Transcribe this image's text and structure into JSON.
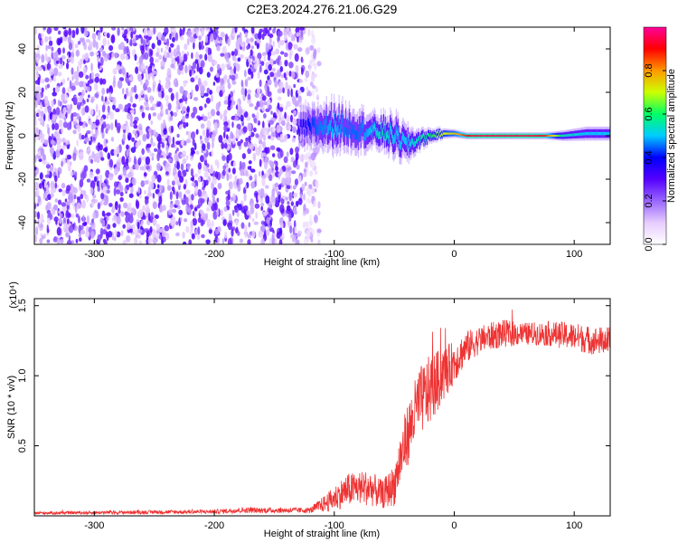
{
  "title": "C2E3.2024.276.21.06.G29",
  "chart_data": [
    {
      "type": "heatmap",
      "xlabel": "Height of straight line (km)",
      "ylabel": "Frequency (Hz)",
      "xlim": [
        -350,
        130
      ],
      "ylim": [
        -50,
        50
      ],
      "x_ticks": [
        -300,
        -200,
        -100,
        0,
        100
      ],
      "x_tick_labels": [
        "-300",
        "-200",
        "-100",
        "0",
        "100"
      ],
      "y_ticks": [
        -40,
        -20,
        0,
        20,
        40
      ],
      "y_tick_labels": [
        "-40",
        "-20",
        "0",
        "20",
        "40"
      ],
      "colorbar": {
        "label": "Normalized spectral amplitude",
        "range": [
          0,
          1
        ],
        "ticks": [
          0.0,
          0.2,
          0.4,
          0.6,
          0.8
        ],
        "tick_labels": [
          "0.0",
          "0.2",
          "0.4",
          "0.6",
          "0.8"
        ],
        "colors": [
          "#ffffff",
          "#e6ccff",
          "#9966ff",
          "#5500ff",
          "#0000ff",
          "#00ccff",
          "#00ff66",
          "#ccff00",
          "#ff9900",
          "#ff0000",
          "#ff0099"
        ]
      },
      "noise_region_x": [
        -350,
        -120
      ],
      "signal_track": {
        "x": [
          -130,
          -115,
          -100,
          -90,
          -80,
          -70,
          -60,
          -50,
          -40,
          -30,
          -20,
          -10,
          0,
          10,
          20,
          40,
          60,
          75,
          90,
          110,
          130
        ],
        "center_freq": [
          3,
          4,
          5,
          4,
          3,
          2,
          2,
          0,
          -4,
          -2,
          0,
          1,
          1,
          0,
          0,
          0,
          0,
          0,
          0,
          1,
          1
        ],
        "half_width": [
          5,
          6,
          7,
          6,
          6,
          5,
          5,
          6,
          5,
          3,
          2,
          1.5,
          1.2,
          1,
          1,
          1,
          1,
          1,
          1.5,
          2,
          2
        ],
        "amplitude": [
          0.35,
          0.45,
          0.5,
          0.45,
          0.45,
          0.5,
          0.55,
          0.5,
          0.5,
          0.55,
          0.6,
          0.7,
          0.75,
          0.9,
          0.95,
          0.95,
          0.95,
          0.9,
          0.55,
          0.5,
          0.5
        ]
      }
    },
    {
      "type": "line",
      "xlabel": "Height of straight line (km)",
      "ylabel": "SNR (10 * v/v)",
      "scale_label": "(x10⁴)",
      "xlim": [
        -350,
        130
      ],
      "ylim": [
        0,
        1.55
      ],
      "x_ticks": [
        -300,
        -200,
        -100,
        0,
        100
      ],
      "x_tick_labels": [
        "-300",
        "-200",
        "-100",
        "0",
        "100"
      ],
      "y_ticks": [
        0.5,
        1.0,
        1.5
      ],
      "y_tick_labels": [
        "0.5",
        "1.0",
        "1.5"
      ],
      "color": "#ee3333",
      "envelope": {
        "x": [
          -350,
          -200,
          -180,
          -120,
          -105,
          -90,
          -80,
          -70,
          -60,
          -50,
          -45,
          -40,
          -30,
          -20,
          -10,
          0,
          10,
          20,
          30,
          40,
          60,
          80,
          100,
          115,
          130
        ],
        "mean": [
          0.02,
          0.03,
          0.04,
          0.04,
          0.1,
          0.18,
          0.2,
          0.2,
          0.15,
          0.22,
          0.4,
          0.55,
          0.8,
          0.9,
          1.0,
          1.1,
          1.2,
          1.25,
          1.28,
          1.3,
          1.3,
          1.3,
          1.28,
          1.25,
          1.25
        ],
        "spread": [
          0.01,
          0.015,
          0.02,
          0.02,
          0.07,
          0.12,
          0.12,
          0.13,
          0.1,
          0.15,
          0.2,
          0.22,
          0.25,
          0.25,
          0.2,
          0.15,
          0.12,
          0.1,
          0.1,
          0.1,
          0.08,
          0.09,
          0.1,
          0.1,
          0.1
        ]
      }
    }
  ]
}
